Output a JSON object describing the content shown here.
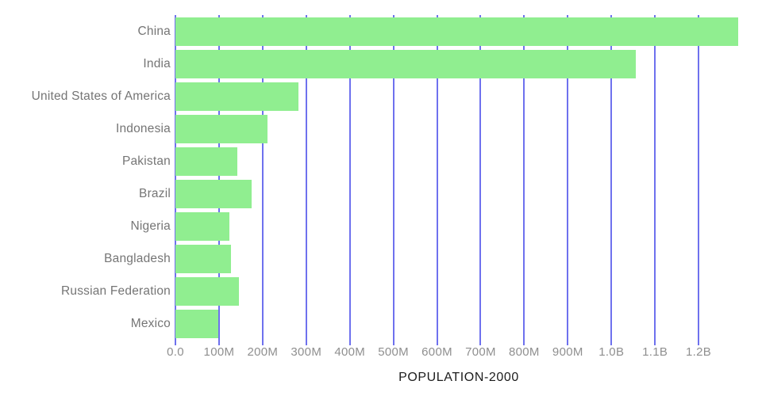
{
  "chart_data": {
    "type": "bar",
    "orientation": "horizontal",
    "title": "POPULATION-2000",
    "categories": [
      "China",
      "India",
      "United States of America",
      "Indonesia",
      "Pakistan",
      "Brazil",
      "Nigeria",
      "Bangladesh",
      "Russian Federation",
      "Mexico"
    ],
    "values_millions": [
      1290.6,
      1056.6,
      281.7,
      211.5,
      142.3,
      174.8,
      122.9,
      127.7,
      146.4,
      98.9
    ],
    "x_ticks": [
      {
        "label": "0.0",
        "value_millions": 0
      },
      {
        "label": "100M",
        "value_millions": 100
      },
      {
        "label": "200M",
        "value_millions": 200
      },
      {
        "label": "300M",
        "value_millions": 300
      },
      {
        "label": "400M",
        "value_millions": 400
      },
      {
        "label": "500M",
        "value_millions": 500
      },
      {
        "label": "600M",
        "value_millions": 600
      },
      {
        "label": "700M",
        "value_millions": 700
      },
      {
        "label": "800M",
        "value_millions": 800
      },
      {
        "label": "900M",
        "value_millions": 900
      },
      {
        "label": "1.0B",
        "value_millions": 1000
      },
      {
        "label": "1.1B",
        "value_millions": 1100
      },
      {
        "label": "1.2B",
        "value_millions": 1200
      }
    ],
    "xlim_millions": [
      0,
      1300
    ],
    "xlabel": "POPULATION-2000",
    "ylabel": "",
    "grid": "vertical",
    "legend": "none",
    "colors": {
      "bar": "#90ee90",
      "gridline": "#6e71ee",
      "category_label": "#757575",
      "tick_label": "#8f8f8f",
      "title": "#1c1c1c",
      "background": "#ffffff"
    }
  }
}
